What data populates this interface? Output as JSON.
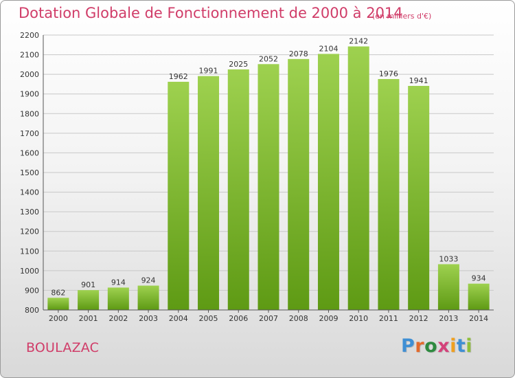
{
  "header": {
    "title": "Dotation Globale de Fonctionnement de 2000 à 2014",
    "subtitle": "(en milliers d'€)"
  },
  "footer": {
    "city": "BOULAZAC",
    "logo": "Proxiti",
    "logo_colors": [
      "#3f8fd4",
      "#e36a2c",
      "#2e8a3f",
      "#d4427a",
      "#f0a020",
      "#3f8fd4",
      "#8fbf3a"
    ]
  },
  "colors": {
    "bar_top": "#9ed14f",
    "bar_bottom": "#5e9a14",
    "grid": "#c8c8c8",
    "axis_text": "#333333",
    "accent": "#d03c68"
  },
  "chart_data": {
    "type": "bar",
    "categories": [
      "2000",
      "2001",
      "2002",
      "2003",
      "2004",
      "2005",
      "2006",
      "2007",
      "2008",
      "2009",
      "2010",
      "2011",
      "2012",
      "2013",
      "2014"
    ],
    "values": [
      862,
      901,
      914,
      924,
      1962,
      1991,
      2025,
      2052,
      2078,
      2104,
      2142,
      1976,
      1941,
      1033,
      934
    ],
    "title": "Dotation Globale de Fonctionnement de 2000 à 2014",
    "subtitle": "(en milliers d'€)",
    "ylim": [
      800,
      2200
    ],
    "yticks": [
      800,
      900,
      1000,
      1100,
      1200,
      1300,
      1400,
      1500,
      1600,
      1700,
      1800,
      1900,
      2000,
      2100,
      2200
    ],
    "grid": true,
    "legend": "none"
  }
}
